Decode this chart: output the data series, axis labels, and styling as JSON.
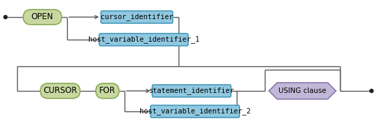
{
  "bg_color": "#ffffff",
  "open_label": "OPEN",
  "cursor_id_label": "cursor_identifier",
  "host_var_1_label": "host_variable_identifier_1",
  "cursor_label": "CURSOR",
  "for_label": "FOR",
  "stmt_id_label": "statement_identifier",
  "host_var_2_label": "host_variable_identifier_2",
  "using_label": "USING clause",
  "keyword_fill": "#c8d8a0",
  "keyword_edge": "#88aa55",
  "rect_fill": "#90c8e0",
  "rect_edge": "#4499bb",
  "using_fill": "#c0b8d8",
  "using_edge": "#8877aa",
  "line_color": "#555555",
  "dot_color": "#222222",
  "font_size": 7.5,
  "keyword_font_size": 8.5
}
